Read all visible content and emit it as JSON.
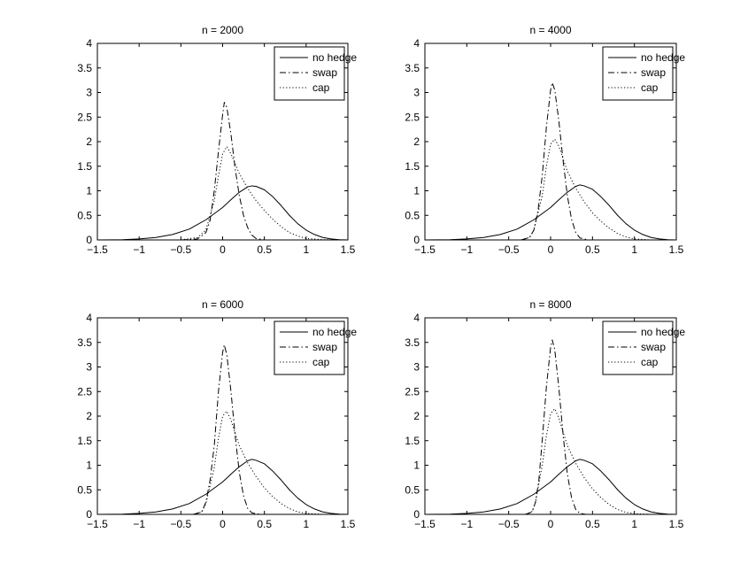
{
  "figure": {
    "background": "#ffffff"
  },
  "chart_data": [
    {
      "type": "line",
      "title": "n = 2000",
      "xlim": [
        -1.5,
        1.5
      ],
      "ylim": [
        0,
        4
      ],
      "xticks": [
        -1.5,
        -1,
        -0.5,
        0,
        0.5,
        1,
        1.5
      ],
      "yticks": [
        0,
        0.5,
        1,
        1.5,
        2,
        2.5,
        3,
        3.5,
        4
      ],
      "legend": "top-right",
      "grid": false,
      "series": [
        {
          "name": "no hedge",
          "style": "solid",
          "points": [
            [
              -1.5,
              0
            ],
            [
              -1.2,
              0.004
            ],
            [
              -1.0,
              0.02
            ],
            [
              -0.8,
              0.05
            ],
            [
              -0.6,
              0.11
            ],
            [
              -0.4,
              0.22
            ],
            [
              -0.2,
              0.41
            ],
            [
              0.0,
              0.66
            ],
            [
              0.1,
              0.82
            ],
            [
              0.2,
              0.97
            ],
            [
              0.3,
              1.08
            ],
            [
              0.35,
              1.1
            ],
            [
              0.4,
              1.09
            ],
            [
              0.5,
              1.02
            ],
            [
              0.6,
              0.88
            ],
            [
              0.7,
              0.7
            ],
            [
              0.8,
              0.5
            ],
            [
              0.9,
              0.33
            ],
            [
              1.0,
              0.2
            ],
            [
              1.1,
              0.11
            ],
            [
              1.2,
              0.05
            ],
            [
              1.3,
              0.02
            ],
            [
              1.4,
              0.005
            ],
            [
              1.5,
              0
            ]
          ]
        },
        {
          "name": "swap",
          "style": "dashdot",
          "points": [
            [
              -0.5,
              0
            ],
            [
              -0.3,
              0.02
            ],
            [
              -0.2,
              0.15
            ],
            [
              -0.15,
              0.4
            ],
            [
              -0.1,
              1.0
            ],
            [
              -0.05,
              1.8
            ],
            [
              0.0,
              2.55
            ],
            [
              0.02,
              2.8
            ],
            [
              0.05,
              2.7
            ],
            [
              0.1,
              2.15
            ],
            [
              0.15,
              1.45
            ],
            [
              0.2,
              0.9
            ],
            [
              0.25,
              0.5
            ],
            [
              0.3,
              0.25
            ],
            [
              0.35,
              0.1
            ],
            [
              0.4,
              0.03
            ],
            [
              0.5,
              0
            ]
          ]
        },
        {
          "name": "cap",
          "style": "dotted",
          "points": [
            [
              -0.5,
              0
            ],
            [
              -0.3,
              0.05
            ],
            [
              -0.2,
              0.2
            ],
            [
              -0.1,
              0.8
            ],
            [
              -0.05,
              1.3
            ],
            [
              0.0,
              1.75
            ],
            [
              0.05,
              1.9
            ],
            [
              0.1,
              1.75
            ],
            [
              0.15,
              1.55
            ],
            [
              0.2,
              1.35
            ],
            [
              0.3,
              1.05
            ],
            [
              0.4,
              0.8
            ],
            [
              0.5,
              0.6
            ],
            [
              0.6,
              0.42
            ],
            [
              0.7,
              0.27
            ],
            [
              0.8,
              0.15
            ],
            [
              0.9,
              0.08
            ],
            [
              1.0,
              0.03
            ],
            [
              1.2,
              0.005
            ],
            [
              1.4,
              0
            ]
          ]
        }
      ]
    },
    {
      "type": "line",
      "title": "n = 4000",
      "xlim": [
        -1.5,
        1.5
      ],
      "ylim": [
        0,
        4
      ],
      "xticks": [
        -1.5,
        -1,
        -0.5,
        0,
        0.5,
        1,
        1.5
      ],
      "yticks": [
        0,
        0.5,
        1,
        1.5,
        2,
        2.5,
        3,
        3.5,
        4
      ],
      "legend": "top-right",
      "grid": false,
      "series": [
        {
          "name": "no hedge",
          "style": "solid",
          "points": [
            [
              -1.5,
              0
            ],
            [
              -1.2,
              0.004
            ],
            [
              -1.0,
              0.02
            ],
            [
              -0.8,
              0.05
            ],
            [
              -0.6,
              0.11
            ],
            [
              -0.4,
              0.22
            ],
            [
              -0.2,
              0.41
            ],
            [
              0.0,
              0.66
            ],
            [
              0.1,
              0.82
            ],
            [
              0.2,
              0.97
            ],
            [
              0.3,
              1.09
            ],
            [
              0.35,
              1.12
            ],
            [
              0.4,
              1.1
            ],
            [
              0.5,
              1.03
            ],
            [
              0.6,
              0.88
            ],
            [
              0.7,
              0.7
            ],
            [
              0.8,
              0.5
            ],
            [
              0.9,
              0.33
            ],
            [
              1.0,
              0.2
            ],
            [
              1.1,
              0.11
            ],
            [
              1.2,
              0.05
            ],
            [
              1.3,
              0.02
            ],
            [
              1.4,
              0.005
            ],
            [
              1.5,
              0
            ]
          ]
        },
        {
          "name": "swap",
          "style": "dashdot",
          "points": [
            [
              -0.35,
              0
            ],
            [
              -0.25,
              0.05
            ],
            [
              -0.2,
              0.2
            ],
            [
              -0.15,
              0.6
            ],
            [
              -0.1,
              1.3
            ],
            [
              -0.05,
              2.3
            ],
            [
              0.0,
              3.05
            ],
            [
              0.02,
              3.2
            ],
            [
              0.05,
              3.05
            ],
            [
              0.1,
              2.4
            ],
            [
              0.15,
              1.6
            ],
            [
              0.2,
              0.9
            ],
            [
              0.25,
              0.42
            ],
            [
              0.3,
              0.15
            ],
            [
              0.35,
              0.04
            ],
            [
              0.45,
              0
            ]
          ]
        },
        {
          "name": "cap",
          "style": "dotted",
          "points": [
            [
              -0.35,
              0
            ],
            [
              -0.25,
              0.05
            ],
            [
              -0.2,
              0.2
            ],
            [
              -0.1,
              0.9
            ],
            [
              -0.05,
              1.5
            ],
            [
              0.0,
              1.95
            ],
            [
              0.05,
              2.05
            ],
            [
              0.1,
              1.9
            ],
            [
              0.15,
              1.65
            ],
            [
              0.2,
              1.4
            ],
            [
              0.3,
              1.05
            ],
            [
              0.4,
              0.78
            ],
            [
              0.5,
              0.55
            ],
            [
              0.6,
              0.38
            ],
            [
              0.7,
              0.24
            ],
            [
              0.8,
              0.13
            ],
            [
              0.9,
              0.06
            ],
            [
              1.0,
              0.02
            ],
            [
              1.2,
              0
            ]
          ]
        }
      ]
    },
    {
      "type": "line",
      "title": "n = 6000",
      "xlim": [
        -1.5,
        1.5
      ],
      "ylim": [
        0,
        4
      ],
      "xticks": [
        -1.5,
        -1,
        -0.5,
        0,
        0.5,
        1,
        1.5
      ],
      "yticks": [
        0,
        0.5,
        1,
        1.5,
        2,
        2.5,
        3,
        3.5,
        4
      ],
      "legend": "top-right",
      "grid": false,
      "series": [
        {
          "name": "no hedge",
          "style": "solid",
          "points": [
            [
              -1.5,
              0
            ],
            [
              -1.2,
              0.004
            ],
            [
              -1.0,
              0.02
            ],
            [
              -0.8,
              0.05
            ],
            [
              -0.6,
              0.11
            ],
            [
              -0.4,
              0.22
            ],
            [
              -0.2,
              0.41
            ],
            [
              0.0,
              0.66
            ],
            [
              0.1,
              0.82
            ],
            [
              0.2,
              0.97
            ],
            [
              0.3,
              1.09
            ],
            [
              0.35,
              1.12
            ],
            [
              0.4,
              1.1
            ],
            [
              0.5,
              1.03
            ],
            [
              0.6,
              0.88
            ],
            [
              0.7,
              0.7
            ],
            [
              0.8,
              0.5
            ],
            [
              0.9,
              0.33
            ],
            [
              1.0,
              0.2
            ],
            [
              1.1,
              0.11
            ],
            [
              1.2,
              0.05
            ],
            [
              1.3,
              0.02
            ],
            [
              1.4,
              0.005
            ],
            [
              1.5,
              0
            ]
          ]
        },
        {
          "name": "swap",
          "style": "dashdot",
          "points": [
            [
              -0.35,
              0
            ],
            [
              -0.25,
              0.05
            ],
            [
              -0.2,
              0.25
            ],
            [
              -0.15,
              0.7
            ],
            [
              -0.1,
              1.4
            ],
            [
              -0.05,
              2.5
            ],
            [
              0.0,
              3.3
            ],
            [
              0.02,
              3.45
            ],
            [
              0.05,
              3.25
            ],
            [
              0.1,
              2.5
            ],
            [
              0.15,
              1.6
            ],
            [
              0.2,
              0.85
            ],
            [
              0.25,
              0.38
            ],
            [
              0.3,
              0.12
            ],
            [
              0.35,
              0.03
            ],
            [
              0.45,
              0
            ]
          ]
        },
        {
          "name": "cap",
          "style": "dotted",
          "points": [
            [
              -0.35,
              0
            ],
            [
              -0.25,
              0.05
            ],
            [
              -0.2,
              0.22
            ],
            [
              -0.1,
              0.95
            ],
            [
              -0.05,
              1.55
            ],
            [
              0.0,
              2.0
            ],
            [
              0.05,
              2.1
            ],
            [
              0.1,
              1.92
            ],
            [
              0.15,
              1.65
            ],
            [
              0.2,
              1.4
            ],
            [
              0.3,
              1.05
            ],
            [
              0.4,
              0.77
            ],
            [
              0.5,
              0.54
            ],
            [
              0.6,
              0.36
            ],
            [
              0.7,
              0.22
            ],
            [
              0.8,
              0.12
            ],
            [
              0.9,
              0.05
            ],
            [
              1.0,
              0.02
            ],
            [
              1.2,
              0
            ]
          ]
        }
      ]
    },
    {
      "type": "line",
      "title": "n = 8000",
      "xlim": [
        -1.5,
        1.5
      ],
      "ylim": [
        0,
        4
      ],
      "xticks": [
        -1.5,
        -1,
        -0.5,
        0,
        0.5,
        1,
        1.5
      ],
      "yticks": [
        0,
        0.5,
        1,
        1.5,
        2,
        2.5,
        3,
        3.5,
        4
      ],
      "legend": "top-right",
      "grid": false,
      "series": [
        {
          "name": "no hedge",
          "style": "solid",
          "points": [
            [
              -1.5,
              0
            ],
            [
              -1.2,
              0.004
            ],
            [
              -1.0,
              0.02
            ],
            [
              -0.8,
              0.05
            ],
            [
              -0.6,
              0.11
            ],
            [
              -0.4,
              0.22
            ],
            [
              -0.2,
              0.41
            ],
            [
              0.0,
              0.66
            ],
            [
              0.1,
              0.82
            ],
            [
              0.2,
              0.97
            ],
            [
              0.3,
              1.09
            ],
            [
              0.35,
              1.12
            ],
            [
              0.4,
              1.1
            ],
            [
              0.5,
              1.03
            ],
            [
              0.6,
              0.88
            ],
            [
              0.7,
              0.7
            ],
            [
              0.8,
              0.5
            ],
            [
              0.9,
              0.33
            ],
            [
              1.0,
              0.2
            ],
            [
              1.1,
              0.11
            ],
            [
              1.2,
              0.05
            ],
            [
              1.3,
              0.02
            ],
            [
              1.4,
              0.005
            ],
            [
              1.5,
              0
            ]
          ]
        },
        {
          "name": "swap",
          "style": "dashdot",
          "points": [
            [
              -0.3,
              0
            ],
            [
              -0.22,
              0.05
            ],
            [
              -0.18,
              0.25
            ],
            [
              -0.14,
              0.7
            ],
            [
              -0.1,
              1.5
            ],
            [
              -0.05,
              2.6
            ],
            [
              0.0,
              3.4
            ],
            [
              0.02,
              3.55
            ],
            [
              0.05,
              3.35
            ],
            [
              0.1,
              2.55
            ],
            [
              0.15,
              1.6
            ],
            [
              0.2,
              0.82
            ],
            [
              0.25,
              0.34
            ],
            [
              0.3,
              0.1
            ],
            [
              0.35,
              0.02
            ],
            [
              0.42,
              0
            ]
          ]
        },
        {
          "name": "cap",
          "style": "dotted",
          "points": [
            [
              -0.3,
              0
            ],
            [
              -0.22,
              0.06
            ],
            [
              -0.18,
              0.25
            ],
            [
              -0.1,
              1.0
            ],
            [
              -0.05,
              1.6
            ],
            [
              0.0,
              2.05
            ],
            [
              0.05,
              2.15
            ],
            [
              0.1,
              1.95
            ],
            [
              0.15,
              1.67
            ],
            [
              0.2,
              1.4
            ],
            [
              0.3,
              1.04
            ],
            [
              0.4,
              0.75
            ],
            [
              0.5,
              0.52
            ],
            [
              0.6,
              0.34
            ],
            [
              0.7,
              0.2
            ],
            [
              0.8,
              0.1
            ],
            [
              0.9,
              0.04
            ],
            [
              1.0,
              0.015
            ],
            [
              1.2,
              0
            ]
          ]
        }
      ]
    }
  ]
}
